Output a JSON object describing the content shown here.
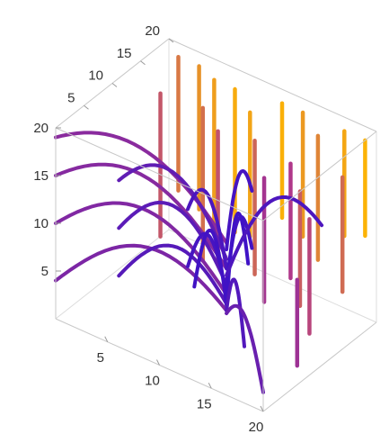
{
  "chart_data": {
    "type": "3d-stream-plot",
    "title": "",
    "xlabel": "",
    "ylabel": "",
    "zlabel": "",
    "x_range": [
      0,
      20
    ],
    "y_range": [
      0,
      20
    ],
    "z_range": [
      0,
      20
    ],
    "axes": {
      "x": {
        "ticks": [
          "5",
          "10",
          "15",
          "20"
        ]
      },
      "y": {
        "ticks": [
          "5",
          "10",
          "15",
          "20"
        ]
      },
      "z": {
        "ticks": [
          "5",
          "10",
          "15",
          "20"
        ]
      }
    },
    "color_scale": {
      "low": "#3a10c8",
      "mid": "#b0388a",
      "high": "#ffb800"
    },
    "streams": [
      {
        "x": 0,
        "y": 0,
        "z0": 4,
        "peak": 9,
        "z1": 0,
        "level": 0.28
      },
      {
        "x": 0,
        "y": 0,
        "z0": 10,
        "peak": 14,
        "z1": 2,
        "level": 0.3
      },
      {
        "x": 0,
        "y": 0,
        "z0": 15,
        "peak": 18,
        "z1": 5,
        "level": 0.32
      },
      {
        "x": 0,
        "y": 0,
        "z0": 19,
        "peak": 21,
        "z1": 8,
        "level": 0.34
      },
      {
        "x": 5,
        "y": 2,
        "z0": 6,
        "peak": 10,
        "z1": 1,
        "level": 0.12
      },
      {
        "x": 5,
        "y": 2,
        "z0": 11,
        "peak": 15,
        "z1": 3,
        "level": 0.14
      },
      {
        "x": 5,
        "y": 2,
        "z0": 16,
        "peak": 19,
        "z1": 6,
        "level": 0.16
      },
      {
        "x": 10,
        "y": 5,
        "z0": 8,
        "peak": 12,
        "z1": 2,
        "level": 0.05
      },
      {
        "x": 10,
        "y": 5,
        "z0": 14,
        "peak": 17,
        "z1": 5,
        "level": 0.07
      },
      {
        "x": 14,
        "y": 9,
        "z0": 10,
        "peak": 14,
        "z1": 3,
        "level": 0.04
      },
      {
        "x": 14,
        "y": 9,
        "z0": 16,
        "peak": 19,
        "z1": 7,
        "level": 0.05
      },
      {
        "x": 9,
        "y": 8,
        "z0": 4,
        "peak": 11,
        "z1": 0,
        "level": 0.03
      },
      {
        "x": 12,
        "y": 12,
        "z0": 6,
        "peak": 13,
        "z1": 0,
        "level": 0.02
      },
      {
        "x": 16,
        "y": 4,
        "z0": 3,
        "peak": 8,
        "z1": 0,
        "level": 0.1
      },
      {
        "x": 20,
        "y": 0,
        "z0": 2,
        "peak": 6,
        "z1": 0,
        "level": 0.2
      },
      {
        "x": 18,
        "y": 14,
        "z0": 12,
        "peak": 16,
        "z1": 4,
        "level": 0.08
      }
    ],
    "verticals": [
      {
        "x": 2,
        "y": 18,
        "z0": 6,
        "z1": 20,
        "level": 0.75
      },
      {
        "x": 4,
        "y": 18,
        "z0": 5,
        "z1": 20,
        "level": 0.85
      },
      {
        "x": 6,
        "y": 17,
        "z0": 4,
        "z1": 20,
        "level": 0.9
      },
      {
        "x": 8,
        "y": 17,
        "z0": 5,
        "z1": 20,
        "level": 0.95
      },
      {
        "x": 10,
        "y": 16,
        "z0": 6,
        "z1": 19,
        "level": 0.92
      },
      {
        "x": 6,
        "y": 15,
        "z0": 2,
        "z1": 18,
        "level": 0.72
      },
      {
        "x": 8,
        "y": 14,
        "z0": 3,
        "z1": 17,
        "level": 0.6
      },
      {
        "x": 12,
        "y": 18,
        "z0": 8,
        "z1": 20,
        "level": 0.97
      },
      {
        "x": 14,
        "y": 18,
        "z0": 7,
        "z1": 20,
        "level": 0.88
      },
      {
        "x": 16,
        "y": 17,
        "z0": 6,
        "z1": 19,
        "level": 0.8
      },
      {
        "x": 18,
        "y": 18,
        "z0": 9,
        "z1": 20,
        "level": 0.93
      },
      {
        "x": 20,
        "y": 18,
        "z0": 10,
        "z1": 20,
        "level": 0.98
      },
      {
        "x": 17,
        "y": 12,
        "z0": 4,
        "z1": 16,
        "level": 0.65
      },
      {
        "x": 19,
        "y": 10,
        "z0": 3,
        "z1": 15,
        "level": 0.55
      },
      {
        "x": 20,
        "y": 14,
        "z0": 6,
        "z1": 18,
        "level": 0.7
      },
      {
        "x": 15,
        "y": 14,
        "z0": 5,
        "z1": 17,
        "level": 0.5
      },
      {
        "x": 13,
        "y": 13,
        "z0": 2,
        "z1": 15,
        "level": 0.45
      },
      {
        "x": 20,
        "y": 6,
        "z0": 2,
        "z1": 11,
        "level": 0.42
      },
      {
        "x": 11,
        "y": 15,
        "z0": 3,
        "z1": 17,
        "level": 0.68
      },
      {
        "x": 3,
        "y": 13,
        "z0": 4,
        "z1": 19,
        "level": 0.62
      }
    ]
  }
}
